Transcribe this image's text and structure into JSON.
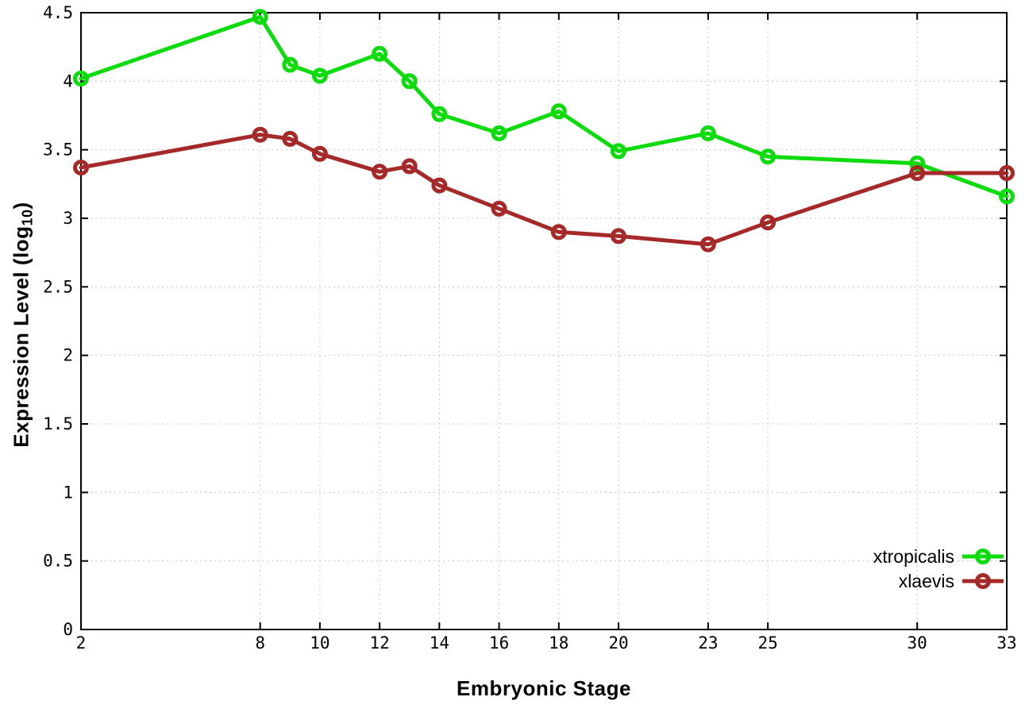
{
  "chart_data": {
    "type": "line",
    "title": "",
    "xlabel": "Embryonic Stage",
    "ylabel": "Expression Level (log10)",
    "ylabel_parts": {
      "main": "Expression Level (log",
      "sub": "10",
      "end": ")"
    },
    "x": [
      2,
      8,
      9,
      10,
      12,
      13,
      14,
      16,
      18,
      20,
      23,
      25,
      30,
      33
    ],
    "series": [
      {
        "name": "xtropicalis",
        "color": "#0cdb0c",
        "values": [
          4.02,
          4.47,
          4.12,
          4.04,
          4.2,
          4.0,
          3.76,
          3.62,
          3.78,
          3.49,
          3.62,
          3.45,
          3.4,
          3.16
        ]
      },
      {
        "name": "xlaevis",
        "color": "#a62929",
        "values": [
          3.37,
          3.61,
          3.58,
          3.47,
          3.34,
          3.38,
          3.24,
          3.07,
          2.9,
          2.87,
          2.81,
          2.97,
          3.33,
          3.33
        ]
      }
    ],
    "xticks": [
      2,
      8,
      10,
      12,
      14,
      16,
      18,
      20,
      23,
      25,
      30,
      33
    ],
    "yticks": [
      "0",
      "0.5",
      "1",
      "1.5",
      "2",
      "2.5",
      "3",
      "3.5",
      "4",
      "4.5"
    ],
    "xlim": [
      2,
      33
    ],
    "ylim": [
      0,
      4.5
    ],
    "grid": true,
    "legend_position": "bottom-right",
    "marker": "open-circle"
  },
  "colors": {
    "axis": "#000000",
    "grid": "#c8c8c8",
    "background": "#ffffff",
    "text": "#000000"
  }
}
